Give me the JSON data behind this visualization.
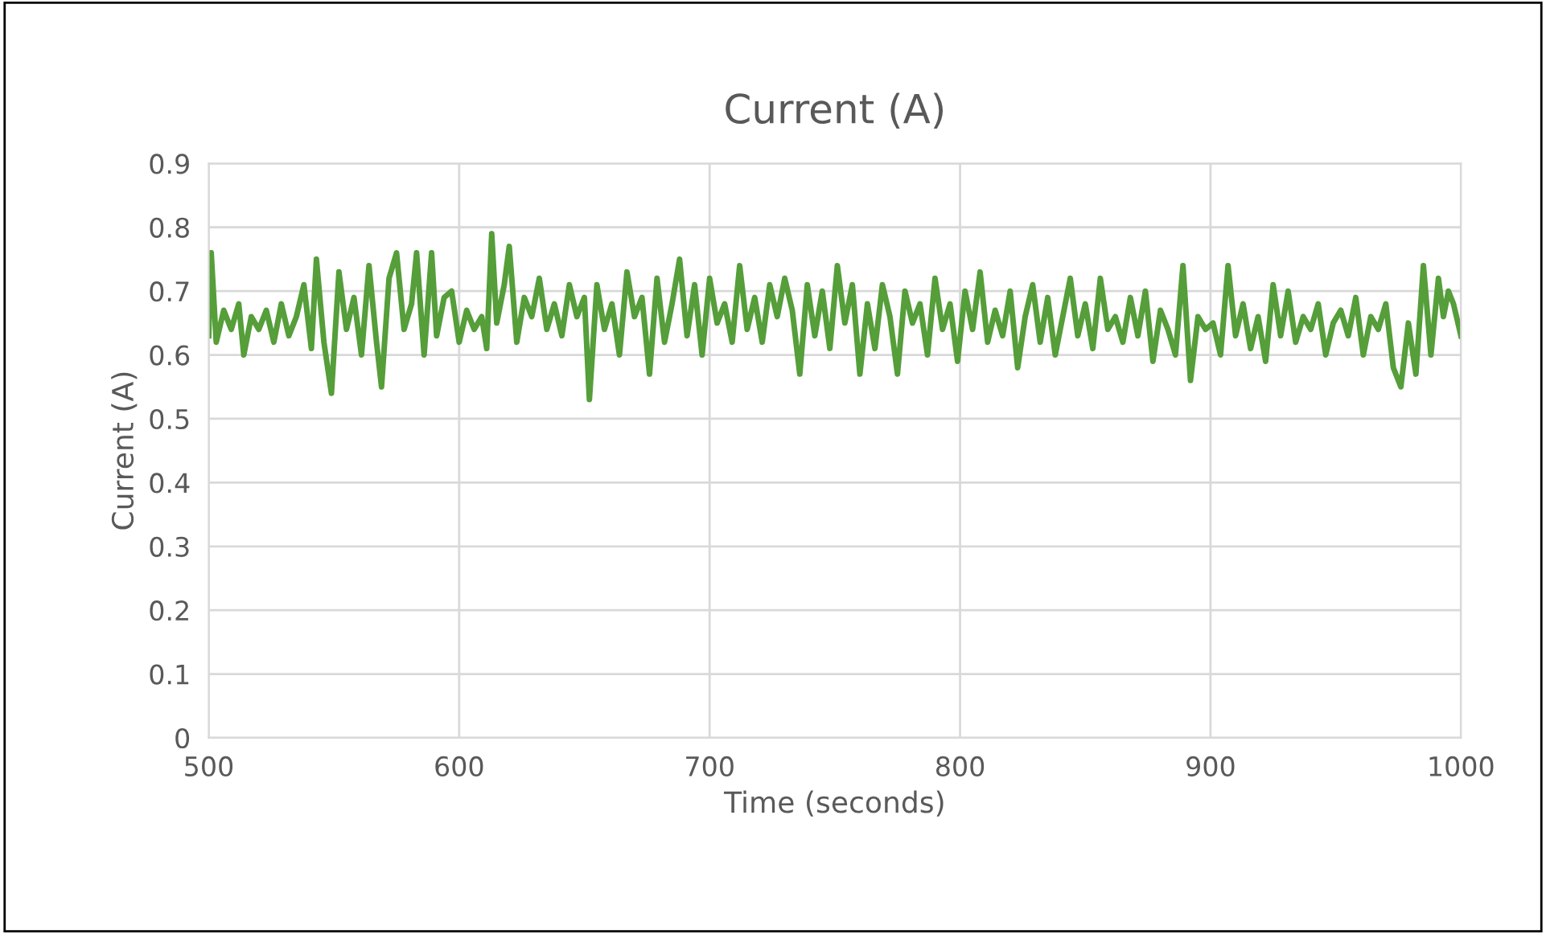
{
  "chart_data": {
    "type": "line",
    "title": "Current (A)",
    "xlabel": "Time (seconds)",
    "ylabel": "Current (A)",
    "xlim": [
      500,
      1000
    ],
    "xticks": [
      500,
      600,
      700,
      800,
      900,
      1000
    ],
    "ylim": [
      0,
      0.9
    ],
    "yticks": [
      0,
      0.1,
      0.2,
      0.3,
      0.4,
      0.5,
      0.6,
      0.7,
      0.8,
      0.9
    ],
    "grid": true,
    "legend": false,
    "marker": "none",
    "line_style": "solid",
    "series": [
      {
        "color": "#559e3a",
        "x": [
          500,
          501,
          503,
          506,
          509,
          512,
          514,
          517,
          520,
          523,
          526,
          529,
          532,
          535,
          538,
          541,
          543,
          546,
          549,
          552,
          555,
          558,
          561,
          564,
          567,
          569,
          572,
          575,
          578,
          581,
          583,
          586,
          589,
          591,
          594,
          597,
          600,
          603,
          606,
          609,
          611,
          613,
          615,
          618,
          620,
          623,
          626,
          629,
          632,
          635,
          638,
          641,
          644,
          647,
          650,
          652,
          655,
          658,
          661,
          664,
          667,
          670,
          673,
          676,
          679,
          682,
          685,
          688,
          691,
          694,
          697,
          700,
          703,
          706,
          709,
          712,
          715,
          718,
          721,
          724,
          727,
          730,
          733,
          736,
          739,
          742,
          745,
          748,
          751,
          754,
          757,
          760,
          763,
          766,
          769,
          772,
          775,
          778,
          781,
          784,
          787,
          790,
          793,
          796,
          799,
          802,
          805,
          808,
          811,
          814,
          817,
          820,
          823,
          826,
          829,
          832,
          835,
          838,
          841,
          844,
          847,
          850,
          853,
          856,
          859,
          862,
          865,
          868,
          871,
          874,
          877,
          880,
          883,
          886,
          889,
          892,
          895,
          898,
          901,
          904,
          907,
          910,
          913,
          916,
          919,
          922,
          925,
          928,
          931,
          934,
          937,
          940,
          943,
          946,
          949,
          952,
          955,
          958,
          961,
          964,
          967,
          970,
          973,
          976,
          979,
          982,
          985,
          988,
          991,
          993,
          995,
          997,
          1000
        ],
        "values": [
          0.63,
          0.76,
          0.62,
          0.67,
          0.64,
          0.68,
          0.6,
          0.66,
          0.64,
          0.67,
          0.62,
          0.68,
          0.63,
          0.66,
          0.71,
          0.61,
          0.75,
          0.62,
          0.54,
          0.73,
          0.64,
          0.69,
          0.6,
          0.74,
          0.62,
          0.55,
          0.72,
          0.76,
          0.64,
          0.68,
          0.76,
          0.6,
          0.76,
          0.63,
          0.69,
          0.7,
          0.62,
          0.67,
          0.64,
          0.66,
          0.61,
          0.79,
          0.65,
          0.71,
          0.77,
          0.62,
          0.69,
          0.66,
          0.72,
          0.64,
          0.68,
          0.63,
          0.71,
          0.66,
          0.69,
          0.53,
          0.71,
          0.64,
          0.68,
          0.6,
          0.73,
          0.66,
          0.69,
          0.57,
          0.72,
          0.62,
          0.68,
          0.75,
          0.63,
          0.71,
          0.6,
          0.72,
          0.65,
          0.68,
          0.62,
          0.74,
          0.64,
          0.69,
          0.62,
          0.71,
          0.66,
          0.72,
          0.67,
          0.57,
          0.71,
          0.63,
          0.7,
          0.61,
          0.74,
          0.65,
          0.71,
          0.57,
          0.68,
          0.61,
          0.71,
          0.66,
          0.57,
          0.7,
          0.65,
          0.68,
          0.6,
          0.72,
          0.64,
          0.68,
          0.59,
          0.7,
          0.64,
          0.73,
          0.62,
          0.67,
          0.63,
          0.7,
          0.58,
          0.66,
          0.71,
          0.62,
          0.69,
          0.6,
          0.66,
          0.72,
          0.63,
          0.68,
          0.61,
          0.72,
          0.64,
          0.66,
          0.62,
          0.69,
          0.63,
          0.7,
          0.59,
          0.67,
          0.64,
          0.6,
          0.74,
          0.56,
          0.66,
          0.64,
          0.65,
          0.6,
          0.74,
          0.63,
          0.68,
          0.61,
          0.66,
          0.59,
          0.71,
          0.63,
          0.7,
          0.62,
          0.66,
          0.64,
          0.68,
          0.6,
          0.65,
          0.67,
          0.63,
          0.69,
          0.6,
          0.66,
          0.64,
          0.68,
          0.58,
          0.55,
          0.65,
          0.57,
          0.74,
          0.6,
          0.72,
          0.66,
          0.7,
          0.68,
          0.63
        ]
      }
    ]
  }
}
